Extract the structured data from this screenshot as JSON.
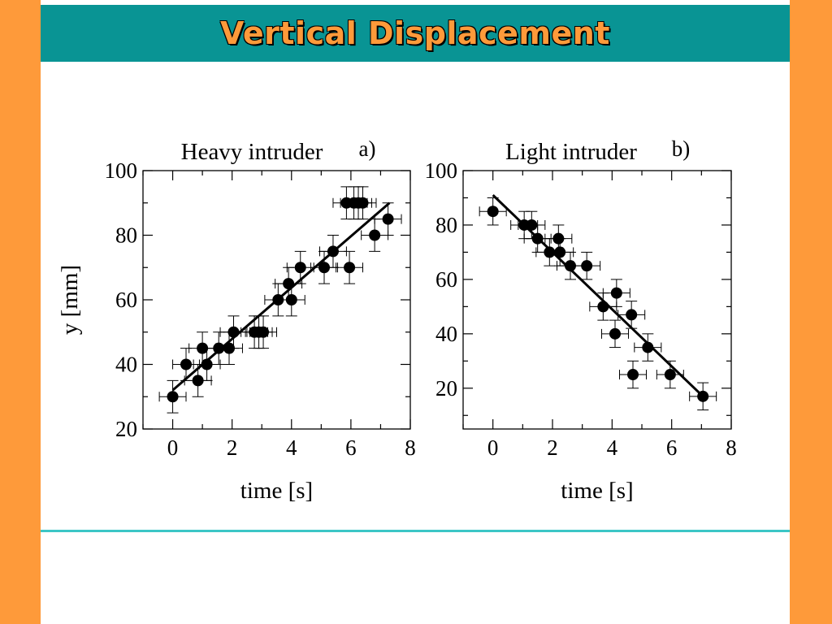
{
  "colors": {
    "side_bar": "#fe9a3a",
    "header_bg": "#099494",
    "title_text": "#fe9a3a",
    "rule": "#3cc6c6",
    "ink": "#000000"
  },
  "header": {
    "title": "Vertical Displacement"
  },
  "chart_data": [
    {
      "type": "scatter",
      "title": "Heavy intruder",
      "panel_label": "a)",
      "xlabel": "time [s]",
      "ylabel": "y [mm]",
      "xlim": [
        -1,
        8
      ],
      "ylim": [
        20,
        100
      ],
      "xticks": [
        "0",
        "2",
        "4",
        "6",
        "8"
      ],
      "yticks": [
        "20",
        "40",
        "60",
        "80",
        "100"
      ],
      "x": [
        0,
        0.45,
        0.85,
        1.0,
        1.15,
        1.55,
        1.9,
        2.05,
        2.75,
        2.9,
        3.05,
        3.55,
        3.9,
        4.0,
        4.3,
        5.1,
        5.4,
        5.85,
        5.95,
        6.1,
        6.25,
        6.4,
        6.8,
        7.25
      ],
      "y": [
        30,
        40,
        35,
        45,
        40,
        45,
        45,
        50,
        50,
        50,
        50,
        60,
        65,
        60,
        70,
        70,
        75,
        90,
        70,
        90,
        90,
        90,
        80,
        85
      ],
      "error_y": 5,
      "error_x": 0.45,
      "fit_line": {
        "x": [
          0,
          7.3
        ],
        "y": [
          32,
          90
        ]
      }
    },
    {
      "type": "scatter",
      "title": "Light intruder",
      "panel_label": "b)",
      "xlabel": "time [s]",
      "ylabel": "",
      "xlim": [
        -1,
        8
      ],
      "ylim": [
        5,
        100
      ],
      "xticks": [
        "0",
        "2",
        "4",
        "6",
        "8"
      ],
      "yticks": [
        "20",
        "40",
        "60",
        "80",
        "100"
      ],
      "x": [
        0,
        1.05,
        1.3,
        1.5,
        1.9,
        2.2,
        2.25,
        2.6,
        3.15,
        3.7,
        4.1,
        4.15,
        4.65,
        4.7,
        5.2,
        5.95,
        7.05
      ],
      "y": [
        85,
        80,
        80,
        75,
        70,
        75,
        70,
        65,
        65,
        50,
        40,
        55,
        47,
        25,
        35,
        25,
        17
      ],
      "error_y": 5,
      "error_x": 0.45,
      "fit_line": {
        "x": [
          0,
          7.05
        ],
        "y": [
          91,
          17
        ]
      }
    }
  ]
}
